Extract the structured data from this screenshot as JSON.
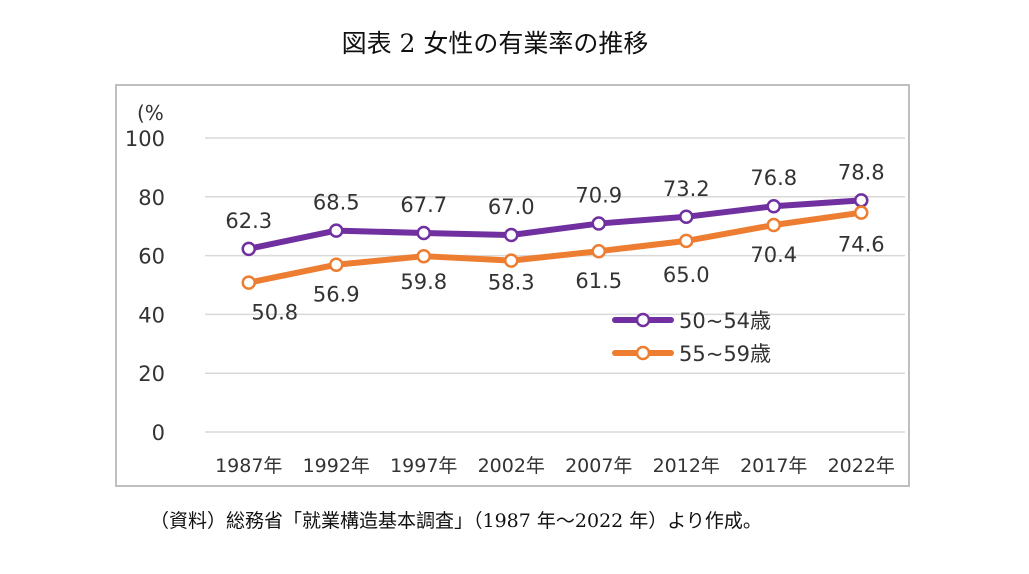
{
  "chart_data": {
    "type": "line",
    "title": "図表 2 女性の有業率の推移",
    "ylabel": "(%",
    "xlabel": "",
    "ylim": [
      0,
      100
    ],
    "yticks": [
      0,
      20,
      40,
      60,
      80,
      100
    ],
    "grid": true,
    "legend": "right",
    "categories": [
      "1987年",
      "1992年",
      "1997年",
      "2002年",
      "2007年",
      "2012年",
      "2017年",
      "2022年"
    ],
    "series": [
      {
        "name": "50~54歳",
        "color": "#7030a0",
        "values": [
          62.3,
          68.5,
          67.7,
          67.0,
          70.9,
          73.2,
          76.8,
          78.8
        ],
        "labels": [
          "62.3",
          "68.5",
          "67.7",
          "67.0",
          "70.9",
          "73.2",
          "76.8",
          "78.8"
        ]
      },
      {
        "name": "55~59歳",
        "color": "#ed7d31",
        "values": [
          50.8,
          56.9,
          59.8,
          58.3,
          61.5,
          65.0,
          70.4,
          74.6
        ],
        "labels": [
          "50.8",
          "56.9",
          "59.8",
          "58.3",
          "61.5",
          "65.0",
          "70.4",
          "74.6"
        ]
      }
    ]
  },
  "source_note": "（資料）総務省「就業構造基本調査」（1987 年～2022 年）より作成。"
}
